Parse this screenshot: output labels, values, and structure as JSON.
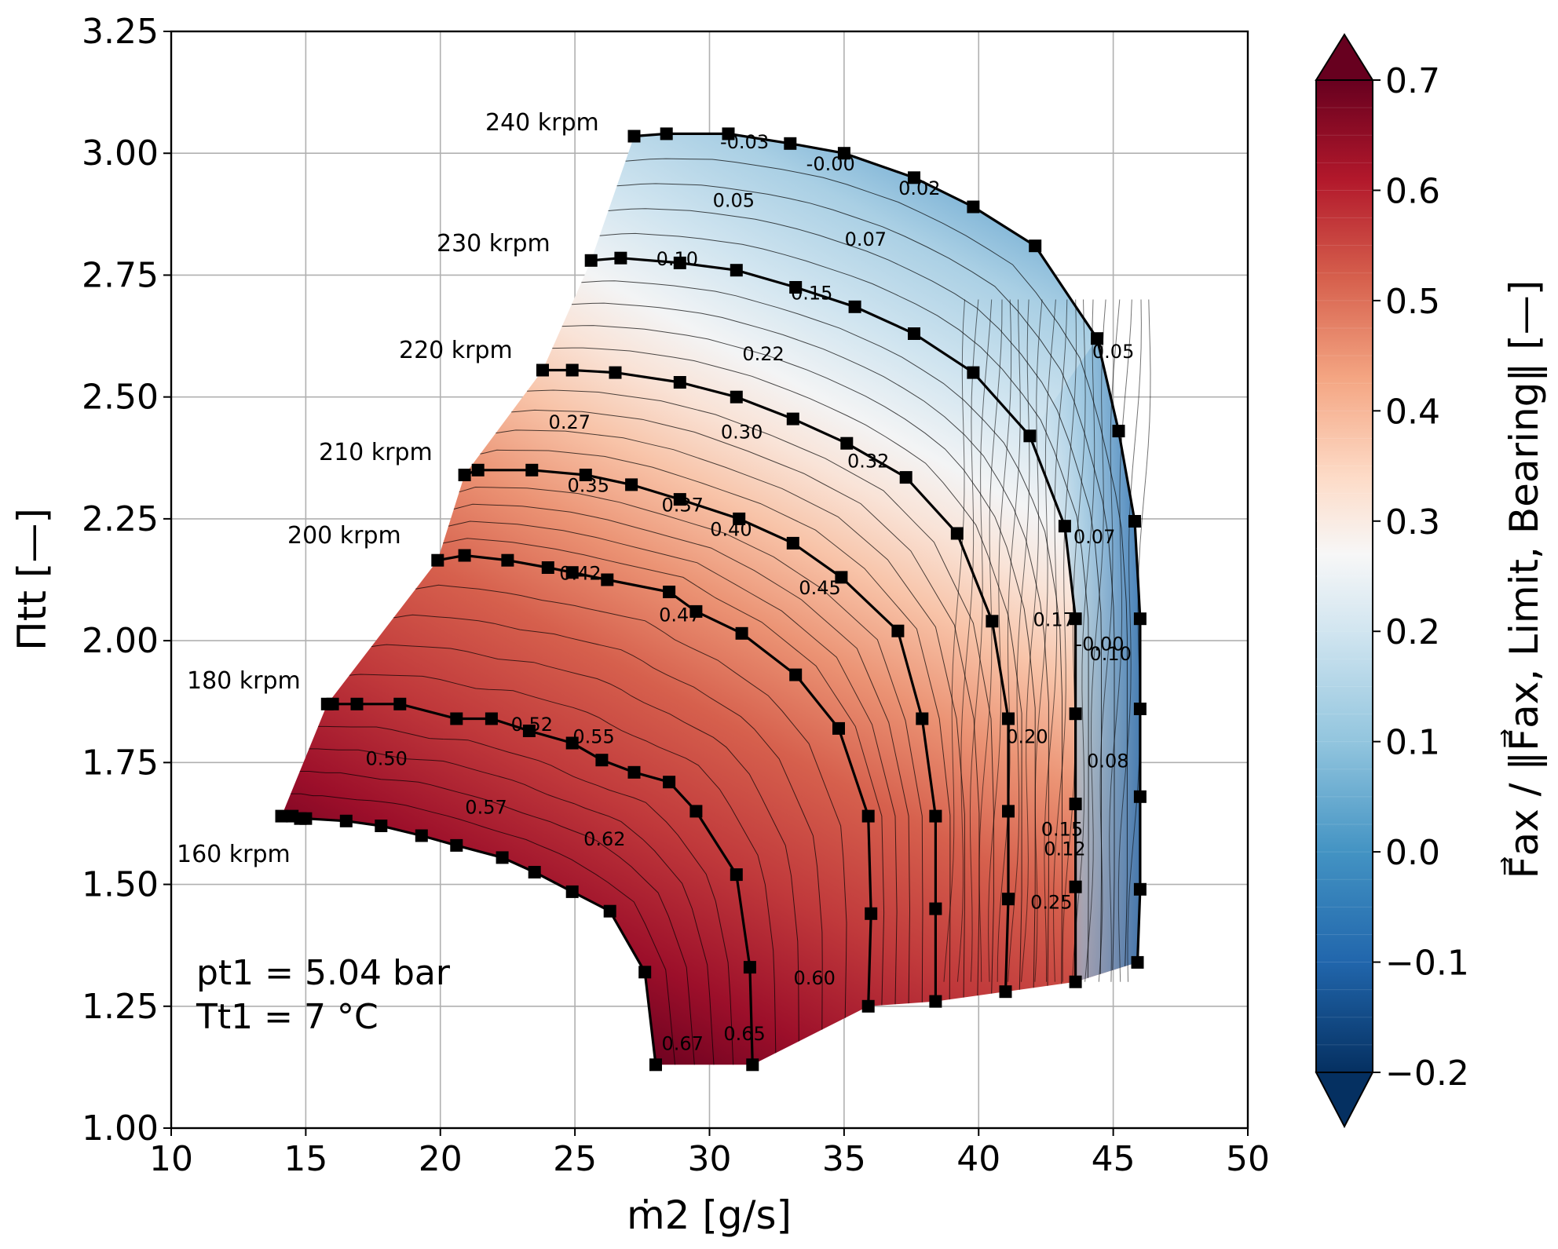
{
  "chart_data": {
    "type": "contour",
    "xlabel": "ṁ2 [g/s]",
    "ylabel": "Πtt [—]",
    "colorbar_label": "F⃗ax / ‖F⃗ax, Limit, Bearing‖ [—]",
    "xlim": [
      10,
      50
    ],
    "ylim": [
      1.0,
      3.25
    ],
    "x_ticks": [
      "10",
      "15",
      "20",
      "25",
      "30",
      "35",
      "40",
      "45",
      "50"
    ],
    "y_ticks": [
      "1.00",
      "1.25",
      "1.50",
      "1.75",
      "2.00",
      "2.25",
      "2.50",
      "2.75",
      "3.00",
      "3.25"
    ],
    "colorbar_range": [
      -0.2,
      0.7
    ],
    "colorbar_ticks": [
      "−0.2",
      "−0.1",
      "0.0",
      "0.1",
      "0.2",
      "0.3",
      "0.4",
      "0.5",
      "0.6",
      "0.7"
    ],
    "grid": true,
    "colormap": "RdBu_r",
    "conditions": [
      "pt1 = 5.04 bar",
      "Tt1 = 7 °C"
    ],
    "speedlines": [
      {
        "name": "160 krpm",
        "points": [
          [
            14.1,
            1.64
          ],
          [
            14.5,
            1.64
          ],
          [
            14.8,
            1.635
          ],
          [
            15.0,
            1.635
          ],
          [
            16.5,
            1.63
          ],
          [
            17.8,
            1.62
          ],
          [
            19.3,
            1.6
          ],
          [
            20.6,
            1.58
          ],
          [
            22.3,
            1.555
          ],
          [
            23.5,
            1.525
          ],
          [
            24.9,
            1.485
          ],
          [
            26.3,
            1.445
          ],
          [
            27.6,
            1.32
          ],
          [
            28.0,
            1.13
          ]
        ]
      },
      {
        "name": "180 krpm",
        "points": [
          [
            15.8,
            1.87
          ],
          [
            16.0,
            1.87
          ],
          [
            16.9,
            1.87
          ],
          [
            18.5,
            1.87
          ],
          [
            20.6,
            1.84
          ],
          [
            21.9,
            1.84
          ],
          [
            23.3,
            1.815
          ],
          [
            24.9,
            1.79
          ],
          [
            26.0,
            1.755
          ],
          [
            27.2,
            1.73
          ],
          [
            28.5,
            1.71
          ],
          [
            29.5,
            1.65
          ],
          [
            31.0,
            1.52
          ],
          [
            31.5,
            1.33
          ],
          [
            31.6,
            1.13
          ]
        ]
      },
      {
        "name": "200 krpm",
        "points": [
          [
            19.9,
            2.165
          ],
          [
            20.9,
            2.175
          ],
          [
            22.5,
            2.165
          ],
          [
            24.0,
            2.15
          ],
          [
            24.9,
            2.14
          ],
          [
            26.2,
            2.125
          ],
          [
            28.5,
            2.1
          ],
          [
            29.5,
            2.06
          ],
          [
            31.2,
            2.015
          ],
          [
            33.2,
            1.93
          ],
          [
            34.8,
            1.82
          ],
          [
            35.9,
            1.64
          ],
          [
            36.0,
            1.44
          ],
          [
            35.9,
            1.25
          ]
        ]
      },
      {
        "name": "210 krpm",
        "points": [
          [
            20.9,
            2.34
          ],
          [
            21.4,
            2.35
          ],
          [
            23.4,
            2.35
          ],
          [
            25.4,
            2.34
          ],
          [
            27.1,
            2.32
          ],
          [
            28.9,
            2.29
          ],
          [
            31.1,
            2.25
          ],
          [
            33.1,
            2.2
          ],
          [
            34.9,
            2.13
          ],
          [
            37.0,
            2.02
          ],
          [
            37.9,
            1.84
          ],
          [
            38.4,
            1.64
          ],
          [
            38.4,
            1.45
          ],
          [
            38.4,
            1.26
          ]
        ]
      },
      {
        "name": "220 krpm",
        "points": [
          [
            23.8,
            2.555
          ],
          [
            24.9,
            2.555
          ],
          [
            26.5,
            2.55
          ],
          [
            28.9,
            2.53
          ],
          [
            31.0,
            2.5
          ],
          [
            33.1,
            2.455
          ],
          [
            35.1,
            2.405
          ],
          [
            37.3,
            2.335
          ],
          [
            39.2,
            2.22
          ],
          [
            40.5,
            2.04
          ],
          [
            41.1,
            1.84
          ],
          [
            41.1,
            1.65
          ],
          [
            41.1,
            1.47
          ],
          [
            41.0,
            1.28
          ]
        ]
      },
      {
        "name": "230 krpm",
        "points": [
          [
            25.6,
            2.78
          ],
          [
            26.7,
            2.785
          ],
          [
            28.9,
            2.775
          ],
          [
            31.0,
            2.76
          ],
          [
            33.2,
            2.725
          ],
          [
            35.4,
            2.685
          ],
          [
            37.6,
            2.63
          ],
          [
            39.8,
            2.55
          ],
          [
            41.9,
            2.42
          ],
          [
            43.2,
            2.235
          ],
          [
            43.6,
            2.045
          ],
          [
            43.6,
            1.85
          ],
          [
            43.6,
            1.665
          ],
          [
            43.6,
            1.495
          ],
          [
            43.6,
            1.3
          ]
        ]
      },
      {
        "name": "240 krpm",
        "points": [
          [
            27.2,
            3.035
          ],
          [
            28.4,
            3.04
          ],
          [
            30.7,
            3.04
          ],
          [
            33.0,
            3.02
          ],
          [
            35.0,
            3.0
          ],
          [
            37.6,
            2.95
          ],
          [
            39.8,
            2.89
          ],
          [
            42.1,
            2.81
          ],
          [
            44.4,
            2.62
          ],
          [
            45.2,
            2.43
          ],
          [
            45.8,
            2.245
          ],
          [
            46.0,
            2.045
          ],
          [
            46.0,
            1.86
          ],
          [
            46.0,
            1.68
          ],
          [
            46.0,
            1.49
          ],
          [
            45.9,
            1.34
          ]
        ]
      }
    ],
    "speed_label_text": [
      "160 krpm",
      "180 krpm",
      "200 krpm",
      "210 krpm",
      "220 krpm",
      "230 krpm",
      "240 krpm"
    ],
    "contour_labels": [
      {
        "text": "-0.03",
        "x": 31.3,
        "y": 3.01
      },
      {
        "text": "-0.00",
        "x": 34.5,
        "y": 2.965
      },
      {
        "text": "0.02",
        "x": 37.8,
        "y": 2.915
      },
      {
        "text": "0.05",
        "x": 30.9,
        "y": 2.89
      },
      {
        "text": "0.07",
        "x": 35.8,
        "y": 2.81
      },
      {
        "text": "0.10",
        "x": 28.8,
        "y": 2.77
      },
      {
        "text": "0.15",
        "x": 33.8,
        "y": 2.7
      },
      {
        "text": "0.22",
        "x": 32.0,
        "y": 2.575
      },
      {
        "text": "0.27",
        "x": 24.8,
        "y": 2.435
      },
      {
        "text": "0.30",
        "x": 31.2,
        "y": 2.415
      },
      {
        "text": "0.32",
        "x": 35.9,
        "y": 2.355
      },
      {
        "text": "0.35",
        "x": 25.5,
        "y": 2.305
      },
      {
        "text": "0.37",
        "x": 29.0,
        "y": 2.265
      },
      {
        "text": "0.40",
        "x": 30.8,
        "y": 2.215
      },
      {
        "text": "0.42",
        "x": 25.2,
        "y": 2.125
      },
      {
        "text": "0.45",
        "x": 34.1,
        "y": 2.095
      },
      {
        "text": "0.47",
        "x": 28.9,
        "y": 2.04
      },
      {
        "text": "0.52",
        "x": 23.4,
        "y": 1.815
      },
      {
        "text": "0.55",
        "x": 25.7,
        "y": 1.79
      },
      {
        "text": "0.50",
        "x": 18.0,
        "y": 1.745
      },
      {
        "text": "0.57",
        "x": 21.7,
        "y": 1.645
      },
      {
        "text": "0.62",
        "x": 26.1,
        "y": 1.58
      },
      {
        "text": "0.60",
        "x": 33.9,
        "y": 1.295
      },
      {
        "text": "0.67",
        "x": 29.0,
        "y": 1.16
      },
      {
        "text": "0.65",
        "x": 31.3,
        "y": 1.18
      },
      {
        "text": "0.25",
        "x": 42.7,
        "y": 1.45
      },
      {
        "text": "0.20",
        "x": 41.8,
        "y": 1.79
      },
      {
        "text": "0.17",
        "x": 42.8,
        "y": 2.03
      },
      {
        "text": "0.15",
        "x": 43.1,
        "y": 1.6
      },
      {
        "text": "0.12",
        "x": 43.2,
        "y": 1.56
      },
      {
        "text": "0.07",
        "x": 44.3,
        "y": 2.2
      },
      {
        "text": "0.05",
        "x": 45.0,
        "y": 2.58
      },
      {
        "text": "0.10",
        "x": 44.9,
        "y": 1.96
      },
      {
        "text": "-0.00",
        "x": 44.5,
        "y": 1.98
      },
      {
        "text": "0.08",
        "x": 44.8,
        "y": 1.74
      }
    ]
  }
}
